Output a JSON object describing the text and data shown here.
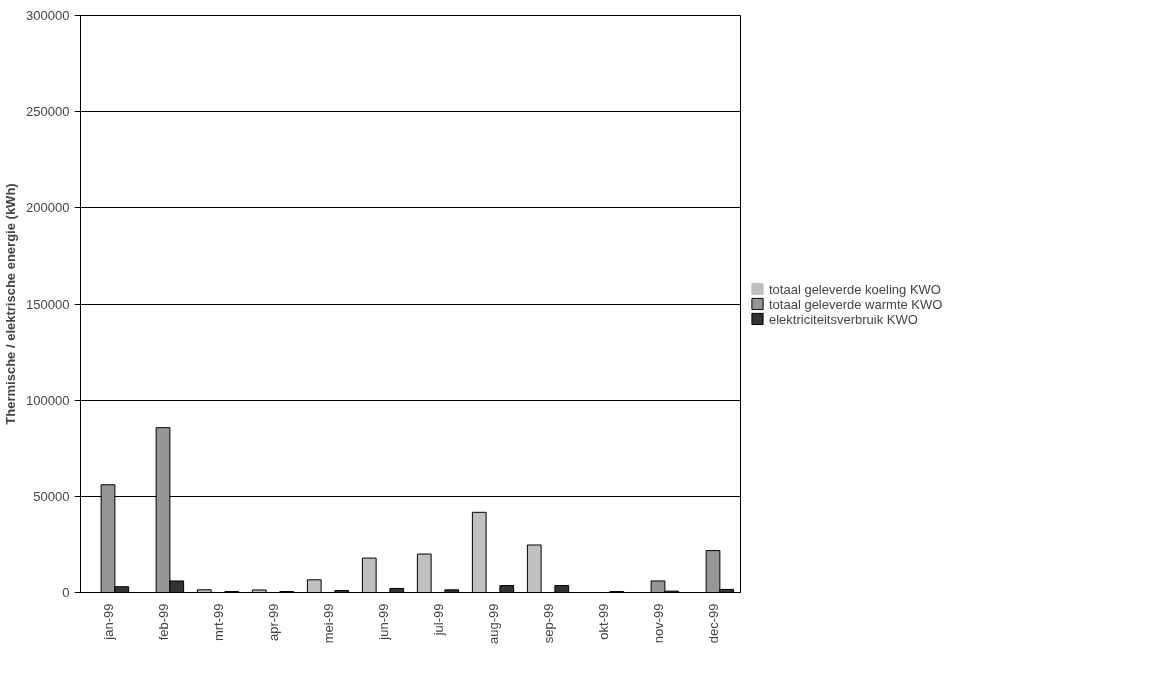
{
  "chart_data": {
    "type": "bar",
    "ylabel": "Thermische / elektrische energie (kWh)",
    "categories": [
      "jan-99",
      "feb-99",
      "mrt-99",
      "apr-99",
      "mei-99",
      "jun-99",
      "jul-99",
      "aug-99",
      "sep-99",
      "okt-99",
      "nov-99",
      "dec-99"
    ],
    "series": [
      {
        "name": "totaal geleverde koeling KWO",
        "color": "#c0c0c0",
        "values": [
          0,
          0,
          1400,
          1300,
          6600,
          17900,
          20000,
          41700,
          24700,
          0,
          0,
          0
        ]
      },
      {
        "name": "totaal geleverde warmte KWO",
        "color": "#969696",
        "values": [
          56000,
          85700,
          0,
          0,
          0,
          0,
          0,
          0,
          0,
          0,
          6000,
          21800
        ]
      },
      {
        "name": "elektriciteitsverbruik KWO",
        "color": "#333333",
        "values": [
          3000,
          6000,
          500,
          500,
          1000,
          2100,
          1400,
          3600,
          3600,
          500,
          700,
          1600
        ]
      }
    ],
    "ylim": [
      0,
      300000
    ],
    "yticks": [
      0,
      50000,
      100000,
      150000,
      200000,
      250000,
      300000
    ],
    "grid": "y",
    "legend": "right"
  }
}
